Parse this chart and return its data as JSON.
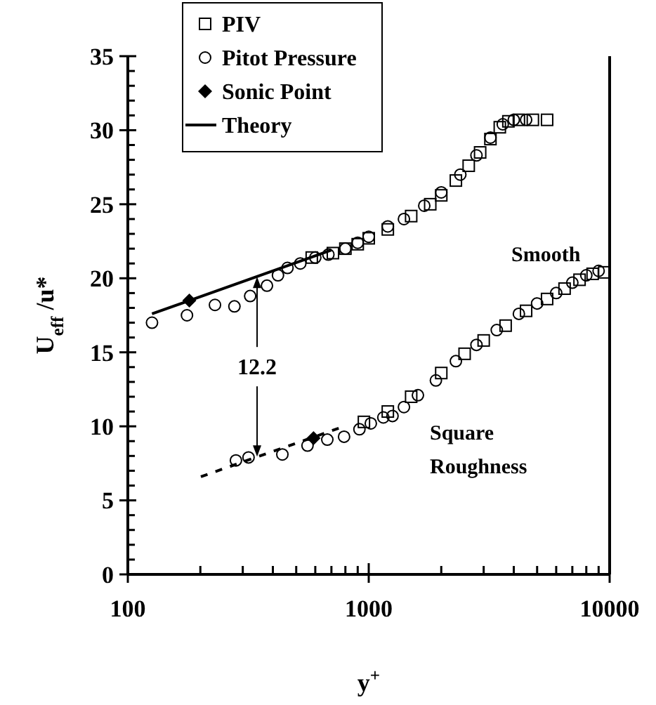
{
  "chart_data": {
    "type": "scatter",
    "xlabel": "y$^{+}$",
    "ylabel": "U$_{eff}$ /u*",
    "log": "x",
    "xlim": [
      100,
      10000
    ],
    "ylim": [
      0,
      35
    ],
    "xticks": [
      100,
      {
        "value": 200,
        "label": null
      },
      {
        "value": 300,
        "label": null
      },
      {
        "value": 400,
        "label": null
      },
      {
        "value": 500,
        "label": null
      },
      {
        "value": 600,
        "label": null
      },
      {
        "value": 700,
        "label": null
      },
      {
        "value": 800,
        "label": null
      },
      {
        "value": 900,
        "label": null
      },
      1000,
      {
        "value": 2000,
        "label": null
      },
      {
        "value": 3000,
        "label": null
      },
      {
        "value": 4000,
        "label": null
      },
      {
        "value": 5000,
        "label": null
      },
      {
        "value": 6000,
        "label": null
      },
      {
        "value": 7000,
        "label": null
      },
      {
        "value": 8000,
        "label": null
      },
      {
        "value": 9000,
        "label": null
      },
      10000
    ],
    "yticks": [
      0,
      {
        "value": 1,
        "label": null
      },
      {
        "value": 2,
        "label": null
      },
      {
        "value": 3,
        "label": null
      },
      {
        "value": 4,
        "label": null
      },
      5,
      {
        "value": 6,
        "label": null
      },
      {
        "value": 7,
        "label": null
      },
      {
        "value": 8,
        "label": null
      },
      {
        "value": 9,
        "label": null
      },
      10,
      {
        "value": 11,
        "label": null
      },
      {
        "value": 12,
        "label": null
      },
      {
        "value": 13,
        "label": null
      },
      {
        "value": 14,
        "label": null
      },
      15,
      {
        "value": 16,
        "label": null
      },
      {
        "value": 17,
        "label": null
      },
      {
        "value": 18,
        "label": null
      },
      {
        "value": 19,
        "label": null
      },
      20,
      {
        "value": 21,
        "label": null
      },
      {
        "value": 22,
        "label": null
      },
      {
        "value": 23,
        "label": null
      },
      {
        "value": 24,
        "label": null
      },
      25,
      {
        "value": 26,
        "label": null
      },
      {
        "value": 27,
        "label": null
      },
      {
        "value": 28,
        "label": null
      },
      {
        "value": 29,
        "label": null
      },
      30,
      {
        "value": 31,
        "label": null
      },
      {
        "value": 32,
        "label": null
      },
      {
        "value": 33,
        "label": null
      },
      {
        "value": 34,
        "label": null
      },
      35
    ],
    "grid": false,
    "legend": "top left",
    "series": [
      {
        "name": "PIV",
        "marker": "square",
        "color": "#000000",
        "x": [
          580,
          710,
          800,
          900,
          1000,
          1200,
          1500,
          1800,
          2000,
          2300,
          2600,
          2900,
          3200,
          3500,
          3800,
          4200,
          4800,
          5500
        ],
        "values": [
          21.4,
          21.7,
          22.0,
          22.3,
          22.7,
          23.3,
          24.2,
          25.0,
          25.6,
          26.6,
          27.6,
          28.5,
          29.4,
          30.2,
          30.6,
          30.7,
          30.7,
          30.7
        ]
      },
      {
        "marker": "square",
        "color": "#000000",
        "x": [
          955,
          1200,
          1500,
          2000,
          2500,
          3000,
          3700,
          4500,
          5500,
          6500,
          7500,
          8500,
          9500
        ],
        "values": [
          10.3,
          11.0,
          12.0,
          13.6,
          14.9,
          15.8,
          16.8,
          17.8,
          18.6,
          19.3,
          19.9,
          20.3,
          20.4
        ]
      },
      {
        "name": "Pitot Pressure",
        "marker": "circle",
        "color": "#000000",
        "x": [
          126,
          176,
          230,
          277,
          322,
          378,
          420,
          460,
          520,
          600,
          680,
          800,
          900,
          1000,
          1200,
          1400,
          1700,
          2000,
          2400,
          2800,
          3200,
          3600,
          4000,
          4500
        ],
        "values": [
          17.0,
          17.5,
          18.2,
          18.1,
          18.8,
          19.5,
          20.2,
          20.7,
          21.0,
          21.4,
          21.6,
          22.0,
          22.4,
          22.8,
          23.5,
          24.0,
          24.9,
          25.8,
          27.0,
          28.3,
          29.5,
          30.4,
          30.7,
          30.7
        ]
      },
      {
        "marker": "circle",
        "color": "#000000",
        "x": [
          281,
          317,
          438,
          557,
          673,
          790,
          915,
          1020,
          1150,
          1255,
          1400,
          1600,
          1900,
          2300,
          2800,
          3400,
          4200,
          5000,
          6000,
          7000,
          8000,
          9000
        ],
        "values": [
          7.7,
          7.9,
          8.1,
          8.7,
          9.1,
          9.3,
          9.8,
          10.2,
          10.6,
          10.7,
          11.3,
          12.1,
          13.1,
          14.4,
          15.5,
          16.5,
          17.6,
          18.3,
          19.0,
          19.7,
          20.2,
          20.5
        ]
      },
      {
        "name": "Sonic Point",
        "marker": "diamond",
        "color": "#000000",
        "x": [
          180,
          590
        ],
        "values": [
          18.5,
          9.2
        ]
      },
      {
        "name": "Theory",
        "type": "line",
        "line_style": "solid",
        "color": "#000000",
        "x": [
          126,
          700
        ],
        "values": [
          17.6,
          21.9
        ]
      },
      {
        "type": "line",
        "line_style": "dashed",
        "color": "#000000",
        "x": [
          201,
          760
        ],
        "values": [
          6.6,
          9.9
        ]
      }
    ],
    "annotations": [
      "Smooth",
      "Square Roughness",
      {
        "text": "12.2",
        "x": 344,
        "y": 20.1
      }
    ]
  }
}
